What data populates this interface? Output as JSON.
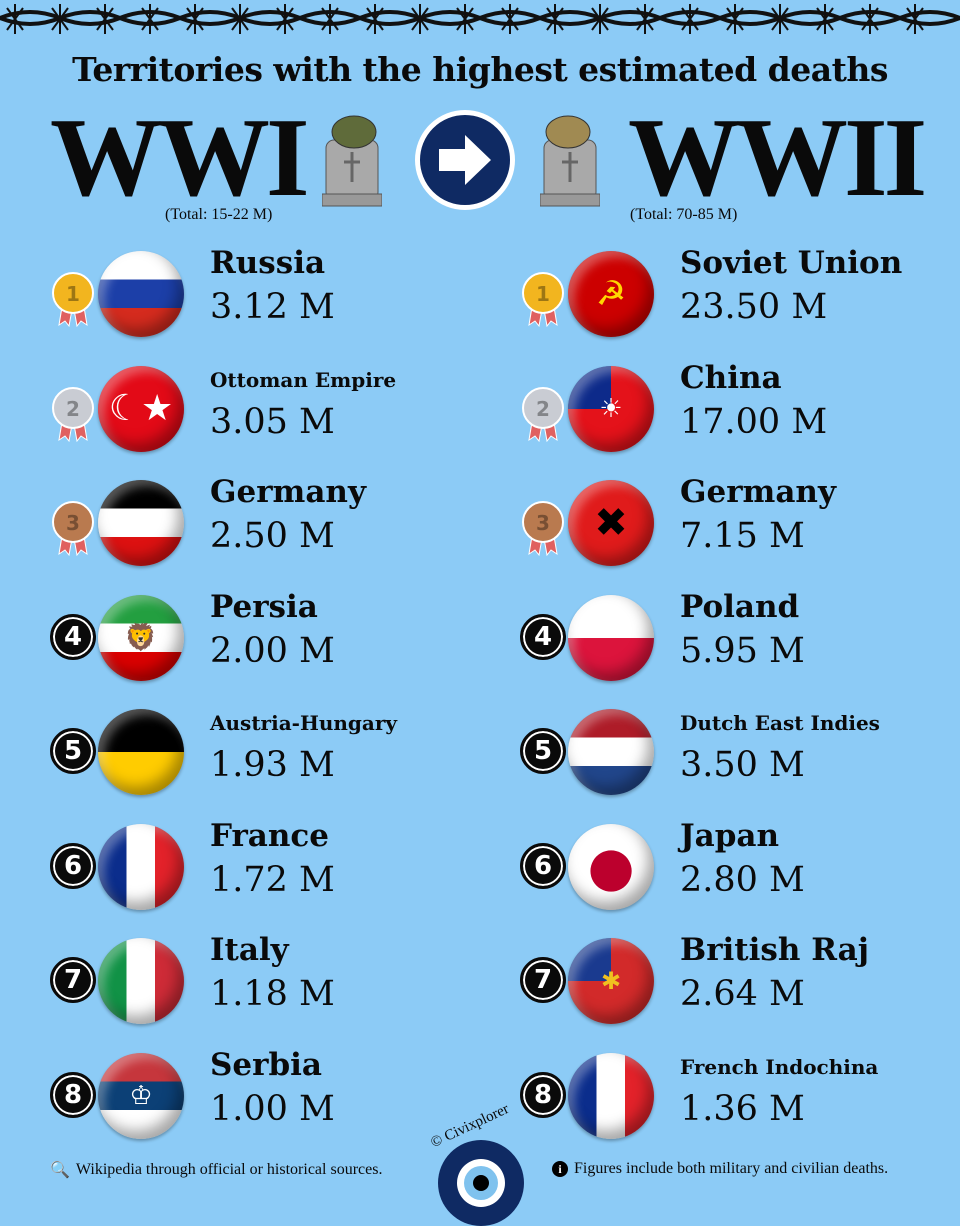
{
  "title": "Territories with the highest estimated deaths",
  "wwi": {
    "label": "WWI",
    "total": "(Total: 15-22 M)",
    "helmet_color": "#5f6b3a",
    "rows": [
      {
        "rank": "1",
        "name": "Russia",
        "value": "3.12 M",
        "flag": "russia"
      },
      {
        "rank": "2",
        "name": "Ottoman Empire",
        "value": "3.05 M",
        "flag": "ottoman"
      },
      {
        "rank": "3",
        "name": "Germany",
        "value": "2.50 M",
        "flag": "german_empire"
      },
      {
        "rank": "4",
        "name": "Persia",
        "value": "2.00 M",
        "flag": "persia"
      },
      {
        "rank": "5",
        "name": "Austria-Hungary",
        "value": "1.93 M",
        "flag": "austria_hungary"
      },
      {
        "rank": "6",
        "name": "France",
        "value": "1.72 M",
        "flag": "france"
      },
      {
        "rank": "7",
        "name": "Italy",
        "value": "1.18 M",
        "flag": "italy"
      },
      {
        "rank": "8",
        "name": "Serbia",
        "value": "1.00 M",
        "flag": "serbia"
      }
    ]
  },
  "wwii": {
    "label": "WWII",
    "total": "(Total: 70-85 M)",
    "helmet_color": "#a08a52",
    "rows": [
      {
        "rank": "1",
        "name": "Soviet Union",
        "value": "23.50 M",
        "flag": "soviet"
      },
      {
        "rank": "2",
        "name": "China",
        "value": "17.00 M",
        "flag": "china"
      },
      {
        "rank": "3",
        "name": "Germany",
        "value": "7.15 M",
        "flag": "nazi_germany"
      },
      {
        "rank": "4",
        "name": "Poland",
        "value": "5.95 M",
        "flag": "poland"
      },
      {
        "rank": "5",
        "name": "Dutch East Indies",
        "value": "3.50 M",
        "flag": "netherlands"
      },
      {
        "rank": "6",
        "name": "Japan",
        "value": "2.80 M",
        "flag": "japan"
      },
      {
        "rank": "7",
        "name": "British Raj",
        "value": "2.64 M",
        "flag": "british_raj"
      },
      {
        "rank": "8",
        "name": "French Indochina",
        "value": "1.36 M",
        "flag": "france"
      }
    ]
  },
  "footer": {
    "source": "Wikipedia through official or historical sources.",
    "note": "Figures include both military and civilian deaths.",
    "source_icon": "magnifier-icon",
    "note_icon": "info-icon"
  },
  "brand": "© Civixplorer",
  "colors": {
    "background": "#8ccbf6",
    "arrow_circle": "#0f2a63",
    "gold": "#f2b51f",
    "silver": "#c9ccd3",
    "bronze": "#b97a4f"
  }
}
